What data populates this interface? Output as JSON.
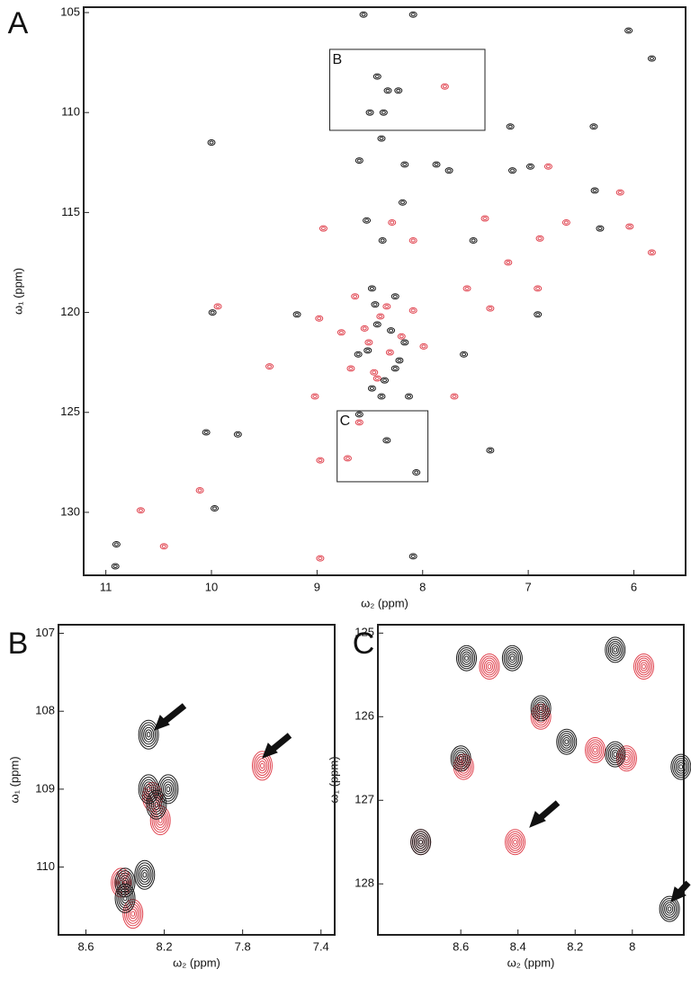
{
  "chart_data": [
    {
      "type": "scatter",
      "panel": "A",
      "x_label": "ω₂ (ppm)",
      "y_label": "ω₁ (ppm)",
      "xlim": [
        11.21,
        5.51
      ],
      "ylim": [
        104.73,
        133.15
      ],
      "xticks": [
        11,
        10,
        9,
        8,
        7,
        6
      ],
      "yticks": [
        105,
        110,
        115,
        120,
        125,
        130
      ],
      "series": [
        {
          "color": "#1a1a1a",
          "x": [
            8.56,
            8.09,
            8.43,
            8.33,
            8.23,
            8.5,
            8.37,
            8.39,
            10.0,
            8.6,
            8.17,
            7.87,
            7.75,
            7.15,
            6.98,
            7.17,
            6.38,
            6.05,
            5.83,
            6.37,
            8.19,
            8.53,
            6.32,
            8.38,
            7.52,
            9.99,
            9.19,
            8.48,
            8.26,
            8.43,
            8.17,
            8.61,
            8.26,
            8.39,
            8.13,
            8.6,
            8.34,
            7.36,
            10.05,
            9.75,
            9.97,
            10.9,
            10.91,
            8.09,
            8.06,
            7.61,
            6.91,
            8.45,
            8.3,
            8.52,
            8.22,
            8.36,
            8.48
          ],
          "values": [
            105.1,
            105.1,
            108.2,
            108.9,
            108.9,
            110.0,
            110.0,
            111.3,
            111.5,
            112.4,
            112.6,
            112.6,
            112.9,
            112.9,
            112.7,
            110.7,
            110.7,
            105.9,
            107.3,
            113.9,
            114.5,
            115.4,
            115.8,
            116.4,
            116.4,
            120.0,
            120.1,
            118.8,
            119.2,
            120.6,
            121.5,
            122.1,
            122.8,
            124.2,
            124.2,
            125.1,
            126.4,
            126.9,
            126.0,
            126.1,
            129.8,
            131.6,
            132.7,
            132.2,
            128.0,
            122.1,
            120.1,
            119.6,
            120.9,
            121.9,
            122.4,
            123.4,
            123.8
          ]
        },
        {
          "color": "#e0434f",
          "x": [
            7.79,
            6.81,
            6.13,
            6.64,
            7.41,
            8.94,
            9.94,
            8.98,
            8.64,
            8.34,
            8.09,
            8.77,
            8.51,
            7.99,
            8.68,
            8.43,
            9.02,
            8.6,
            8.97,
            8.71,
            7.7,
            7.36,
            7.19,
            6.89,
            6.04,
            5.83,
            10.45,
            10.67,
            10.11,
            9.45,
            8.97,
            6.91,
            7.58,
            8.09,
            8.29,
            8.4,
            8.55,
            8.2,
            8.46,
            8.31
          ],
          "values": [
            108.7,
            112.7,
            114.0,
            115.5,
            115.3,
            115.8,
            119.7,
            120.3,
            119.2,
            119.7,
            119.9,
            121.0,
            121.5,
            121.7,
            122.8,
            123.3,
            124.2,
            125.5,
            127.4,
            127.3,
            124.2,
            119.8,
            117.5,
            116.3,
            115.7,
            117.0,
            131.7,
            129.9,
            128.9,
            122.7,
            132.3,
            118.8,
            118.8,
            116.4,
            115.5,
            120.2,
            120.8,
            121.2,
            123.0,
            122.0
          ]
        }
      ],
      "annotations": [
        {
          "text": "B",
          "xlim": [
            8.88,
            7.41
          ],
          "ylim": [
            106.84,
            110.89
          ]
        },
        {
          "text": "C",
          "xlim": [
            8.81,
            7.95
          ],
          "ylim": [
            124.92,
            128.47
          ]
        }
      ]
    },
    {
      "type": "scatter",
      "panel": "B",
      "x_label": "ω₂ (ppm)",
      "y_label": "ω₁ (ppm)",
      "xlim": [
        8.74,
        7.33
      ],
      "ylim": [
        106.89,
        110.87
      ],
      "xticks": [
        8.6,
        8.2,
        7.8,
        7.4
      ],
      "yticks": [
        107,
        108,
        109,
        110
      ],
      "series": [
        {
          "color": "#1a1a1a",
          "x": [
            8.4,
            8.4,
            8.3,
            8.28,
            8.24,
            8.28,
            8.18
          ],
          "values": [
            110.4,
            110.2,
            110.1,
            108.3,
            109.2,
            109.0,
            109.0
          ]
        },
        {
          "color": "#e0434f",
          "x": [
            8.42,
            8.36,
            8.26,
            8.22,
            7.7
          ],
          "values": [
            110.2,
            110.6,
            109.1,
            109.4,
            108.7
          ]
        }
      ]
    },
    {
      "type": "scatter",
      "panel": "C",
      "x_label": "ω₂ (ppm)",
      "y_label": "ω₁ (ppm)",
      "xlim": [
        8.89,
        7.82
      ],
      "ylim": [
        124.9,
        128.61
      ],
      "xticks": [
        8.6,
        8.4,
        8.2,
        8.0
      ],
      "yticks": [
        125,
        126,
        127,
        128
      ],
      "series": [
        {
          "color": "#1a1a1a",
          "x": [
            8.6,
            8.06,
            8.06,
            8.32,
            8.23,
            8.58,
            8.42,
            8.74,
            7.87,
            7.83
          ],
          "values": [
            126.5,
            126.45,
            125.2,
            125.9,
            126.3,
            125.3,
            125.3,
            127.5,
            128.3,
            126.6
          ]
        },
        {
          "color": "#e0434f",
          "x": [
            8.74,
            8.59,
            8.41,
            8.02,
            7.96,
            8.32,
            8.5,
            8.13
          ],
          "values": [
            127.5,
            126.6,
            127.5,
            126.5,
            125.4,
            126.0,
            125.4,
            126.4
          ]
        }
      ]
    }
  ]
}
